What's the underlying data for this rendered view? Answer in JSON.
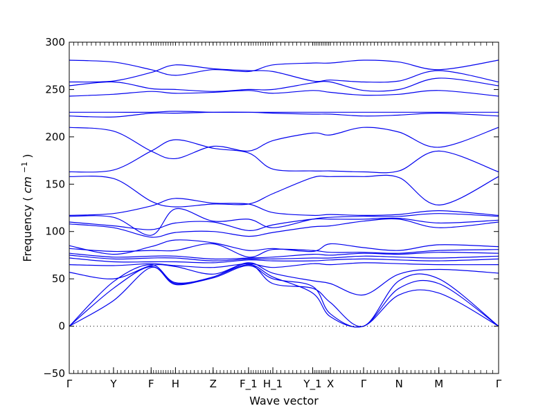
{
  "chart_data": {
    "type": "line",
    "title": "",
    "xlabel": "Wave vector",
    "ylabel": "Frequency",
    "ylabel_unit": "cm",
    "ylabel_unit_exp": "−1",
    "ylim": [
      -50,
      300
    ],
    "yticks": [
      -50,
      0,
      50,
      100,
      150,
      200,
      250,
      300
    ],
    "grid": false,
    "zero_line": "dotted",
    "line_color": "#0000ee",
    "high_symmetry_points": [
      {
        "label": "Γ",
        "x": 0.0
      },
      {
        "label": "Y",
        "x": 1.0
      },
      {
        "label": "F",
        "x": 1.85
      },
      {
        "label": "H",
        "x": 2.4
      },
      {
        "label": "Z",
        "x": 3.25
      },
      {
        "label": "F_1",
        "x": 4.05
      },
      {
        "label": "H_1",
        "x": 4.6
      },
      {
        "label": "Y_1",
        "x": 5.5
      },
      {
        "label": "X",
        "x": 5.9
      },
      {
        "label": "Γ",
        "x": 6.65
      },
      {
        "label": "N",
        "x": 7.45
      },
      {
        "label": "M",
        "x": 8.35
      },
      {
        "label": "Γ",
        "x": 9.7
      }
    ],
    "xlim": [
      0,
      9.7
    ],
    "series": [
      {
        "x": [
          0,
          1.0,
          1.85,
          2.4,
          3.25,
          4.05,
          4.6,
          5.5,
          5.9,
          6.65,
          7.45,
          8.35,
          9.7
        ],
        "values": [
          281,
          279,
          271,
          265,
          271,
          269,
          276,
          278,
          278,
          281,
          279,
          271,
          281
        ]
      },
      {
        "x": [
          0,
          1.0,
          1.85,
          2.4,
          3.25,
          4.05,
          4.6,
          5.5,
          5.9,
          6.65,
          7.45,
          8.35,
          9.7
        ],
        "values": [
          258,
          259,
          268,
          276,
          272,
          270,
          269,
          259,
          260,
          258,
          259,
          270,
          258
        ]
      },
      {
        "x": [
          0,
          1.0,
          1.85,
          2.4,
          3.25,
          4.05,
          4.6,
          5.5,
          5.9,
          6.65,
          7.45,
          8.35,
          9.7
        ],
        "values": [
          254,
          258,
          251,
          250,
          248,
          250,
          250,
          257,
          258,
          249,
          250,
          262,
          254
        ]
      },
      {
        "x": [
          0,
          1.0,
          1.85,
          2.4,
          3.25,
          4.05,
          4.6,
          5.5,
          5.9,
          6.65,
          7.45,
          8.35,
          9.7
        ],
        "values": [
          243,
          245,
          248,
          246,
          247,
          249,
          246,
          249,
          247,
          244,
          245,
          249,
          243
        ]
      },
      {
        "x": [
          0,
          1.0,
          1.85,
          2.4,
          3.25,
          4.05,
          4.6,
          5.5,
          5.9,
          6.65,
          7.45,
          8.35,
          9.7
        ],
        "values": [
          226,
          226,
          226,
          227,
          226,
          226,
          226,
          226,
          226,
          226,
          226,
          226,
          226
        ]
      },
      {
        "x": [
          0,
          1.0,
          1.85,
          2.4,
          3.25,
          4.05,
          4.6,
          5.5,
          5.9,
          6.65,
          7.45,
          8.35,
          9.7
        ],
        "values": [
          222,
          221,
          225,
          225,
          226,
          226,
          225,
          224,
          224,
          222,
          223,
          225,
          222
        ]
      },
      {
        "x": [
          0,
          1.0,
          1.85,
          2.4,
          3.25,
          4.05,
          4.6,
          5.5,
          5.9,
          6.65,
          7.45,
          8.35,
          9.7
        ],
        "values": [
          210,
          206,
          185,
          177,
          190,
          185,
          196,
          204,
          202,
          210,
          205,
          189,
          210
        ]
      },
      {
        "x": [
          0,
          1.0,
          1.85,
          2.4,
          3.25,
          4.05,
          4.6,
          5.5,
          5.9,
          6.65,
          7.45,
          8.35,
          9.7
        ],
        "values": [
          163,
          165,
          185,
          197,
          188,
          183,
          166,
          164,
          164,
          163,
          164,
          185,
          163
        ]
      },
      {
        "x": [
          0,
          1.0,
          1.85,
          2.4,
          3.25,
          4.05,
          4.6,
          5.5,
          5.9,
          6.65,
          7.45,
          8.35,
          9.7
        ],
        "values": [
          158,
          156,
          132,
          126,
          129,
          129,
          140,
          157,
          158,
          158,
          157,
          128,
          158
        ]
      },
      {
        "x": [
          0,
          1.0,
          1.85,
          2.4,
          3.25,
          4.05,
          4.6,
          5.5,
          5.9,
          6.65,
          7.45,
          8.35,
          9.7
        ],
        "values": [
          117,
          119,
          127,
          135,
          130,
          129,
          120,
          117,
          118,
          117,
          118,
          122,
          117
        ]
      },
      {
        "x": [
          0,
          1.0,
          1.85,
          2.4,
          3.25,
          4.05,
          4.6,
          5.5,
          5.9,
          6.65,
          7.45,
          8.35,
          9.7
        ],
        "values": [
          116,
          115,
          96,
          124,
          111,
          113,
          104,
          113,
          115,
          116,
          116,
          119,
          116
        ]
      },
      {
        "x": [
          0,
          1.0,
          1.85,
          2.4,
          3.25,
          4.05,
          4.6,
          5.5,
          5.9,
          6.65,
          7.45,
          8.35,
          9.7
        ],
        "values": [
          110,
          106,
          102,
          109,
          110,
          101,
          107,
          113,
          113,
          113,
          114,
          109,
          112
        ]
      },
      {
        "x": [
          0,
          1.0,
          1.85,
          2.4,
          3.25,
          4.05,
          4.6,
          5.5,
          5.9,
          6.65,
          7.45,
          8.35,
          9.7
        ],
        "values": [
          108,
          104,
          94,
          99,
          100,
          95,
          99,
          105,
          106,
          111,
          113,
          104,
          110
        ]
      },
      {
        "x": [
          0,
          1.0,
          1.85,
          2.4,
          3.25,
          4.05,
          4.6,
          5.5,
          5.9,
          6.65,
          7.45,
          8.35,
          9.7
        ],
        "values": [
          85,
          76,
          84,
          91,
          88,
          80,
          82,
          79,
          87,
          83,
          80,
          86,
          84
        ]
      },
      {
        "x": [
          0,
          1.0,
          1.85,
          2.4,
          3.25,
          4.05,
          4.6,
          5.5,
          5.9,
          6.65,
          7.45,
          8.35,
          9.7
        ],
        "values": [
          82,
          79,
          80,
          80,
          87,
          73,
          81,
          80,
          78,
          78,
          77,
          80,
          81
        ]
      },
      {
        "x": [
          0,
          1.0,
          1.85,
          2.4,
          3.25,
          4.05,
          4.6,
          5.5,
          5.9,
          6.65,
          7.45,
          8.35,
          9.7
        ],
        "values": [
          77,
          73,
          74,
          74,
          71,
          72,
          73,
          76,
          75,
          77,
          76,
          78,
          77
        ]
      },
      {
        "x": [
          0,
          1.0,
          1.85,
          2.4,
          3.25,
          4.05,
          4.6,
          5.5,
          5.9,
          6.65,
          7.45,
          8.35,
          9.7
        ],
        "values": [
          75,
          71,
          72,
          72,
          69,
          71,
          71,
          72,
          72,
          74,
          73,
          72,
          74
        ]
      },
      {
        "x": [
          0,
          1.0,
          1.85,
          2.4,
          3.25,
          4.05,
          4.6,
          5.5,
          5.9,
          6.65,
          7.45,
          8.35,
          9.7
        ],
        "values": [
          72,
          68,
          68,
          68,
          67,
          70,
          69,
          69,
          70,
          71,
          70,
          69,
          71
        ]
      },
      {
        "x": [
          0,
          1.0,
          1.85,
          2.4,
          3.25,
          4.05,
          4.6,
          5.5,
          5.9,
          6.65,
          7.45,
          8.35,
          9.7
        ],
        "values": [
          65,
          64,
          66,
          64,
          62,
          66,
          62,
          66,
          65,
          67,
          66,
          65,
          65
        ]
      },
      {
        "x": [
          0,
          1.0,
          1.85,
          2.4,
          3.25,
          4.05,
          4.6,
          5.5,
          5.9,
          6.65,
          7.45,
          8.35,
          9.7
        ],
        "values": [
          57,
          50,
          64,
          63,
          55,
          67,
          56,
          48,
          45,
          33,
          55,
          60,
          56
        ]
      },
      {
        "x": [
          0,
          1.0,
          1.85,
          2.4,
          3.25,
          4.05,
          4.6,
          5.5,
          5.9,
          6.65,
          7.45,
          8.35,
          9.7
        ],
        "values": [
          0,
          47,
          65,
          46,
          52,
          66,
          45,
          40,
          25,
          0,
          48,
          50,
          0
        ]
      },
      {
        "x": [
          0,
          1.0,
          1.85,
          2.4,
          3.25,
          4.05,
          4.6,
          5.5,
          5.9,
          6.65,
          7.45,
          8.35,
          9.7
        ],
        "values": [
          0,
          40,
          63,
          45,
          51,
          64,
          50,
          42,
          13,
          0,
          40,
          45,
          0
        ]
      },
      {
        "x": [
          0,
          1.0,
          1.85,
          2.4,
          3.25,
          4.05,
          4.6,
          5.5,
          5.9,
          6.65,
          7.45,
          8.35,
          9.7
        ],
        "values": [
          0,
          27,
          62,
          44,
          52,
          65,
          52,
          35,
          10,
          0,
          33,
          35,
          0
        ]
      }
    ]
  }
}
